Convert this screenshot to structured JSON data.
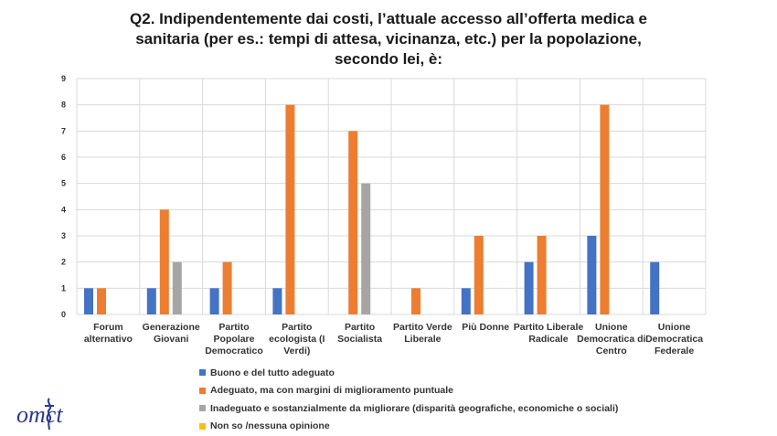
{
  "title": {
    "line1": "Q2. Indipendentemente dai costi, l’attuale accesso all’offerta medica e",
    "line2": "sanitaria (per es.: tempi di attesa, vicinanza, etc.) per la popolazione,",
    "line3": "secondo lei, è:"
  },
  "colors": {
    "blue": "#4472c4",
    "orange": "#ed7d31",
    "gray": "#a5a5a5",
    "yellow": "#ffc000",
    "grid": "#d9d9d9",
    "logo": "#2b3a8c"
  },
  "logo_icon": "omct-logo",
  "logo_text": "omct",
  "chart_data": {
    "type": "bar",
    "ylim": [
      0,
      9
    ],
    "yticks": [
      0,
      1,
      2,
      3,
      4,
      5,
      6,
      7,
      8,
      9
    ],
    "grid": true,
    "legend_position": "bottom",
    "categories": [
      [
        "Forum",
        "alternativo"
      ],
      [
        "Generazione",
        "Giovani"
      ],
      [
        "Partito",
        "Popolare",
        "Democratico"
      ],
      [
        "Partito",
        "ecologista (I",
        "Verdi)"
      ],
      [
        "Partito",
        "Socialista"
      ],
      [
        "Partito Verde",
        "Liberale"
      ],
      [
        "Più Donne"
      ],
      [
        "Partito Liberale",
        "Radicale"
      ],
      [
        "Unione",
        "Democratica di",
        "Centro"
      ],
      [
        "Unione",
        "Democratica",
        "Federale"
      ]
    ],
    "series": [
      {
        "name": "Buono e del tutto adeguato",
        "color": "#4472c4",
        "values": [
          1,
          1,
          1,
          1,
          0,
          0,
          1,
          2,
          3,
          2
        ]
      },
      {
        "name": "Adeguato, ma con margini di miglioramento puntuale",
        "color": "#ed7d31",
        "values": [
          1,
          4,
          2,
          8,
          7,
          1,
          3,
          3,
          8,
          0
        ]
      },
      {
        "name": "Inadeguato e sostanzialmente da migliorare (disparità geografiche, economiche o sociali)",
        "color": "#a5a5a5",
        "values": [
          0,
          2,
          0,
          0,
          5,
          0,
          0,
          0,
          0,
          0
        ]
      },
      {
        "name": "Non so /nessuna opinione",
        "color": "#ffc000",
        "values": [
          0,
          0,
          0,
          0,
          0,
          0,
          0,
          0,
          0,
          0
        ]
      }
    ]
  }
}
